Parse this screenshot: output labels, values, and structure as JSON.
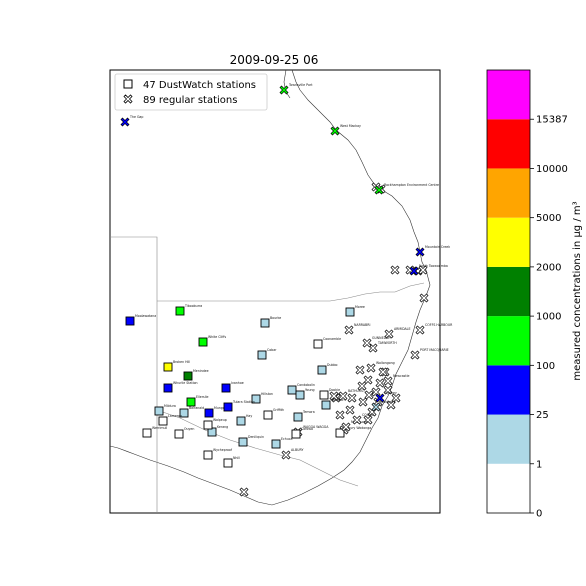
{
  "chart_data": {
    "type": "scatter",
    "title": "2009-09-25 06",
    "legend": {
      "placement": "top-left",
      "entries": [
        {
          "marker": "square",
          "label": "47 DustWatch stations"
        },
        {
          "marker": "x",
          "label": "89 regular stations"
        }
      ]
    },
    "colorbar": {
      "label": "measured concentrations in μg / m³",
      "bounds": [
        "0",
        "1",
        "25",
        "100",
        "1000",
        "2000",
        "5000",
        "10000",
        "15387"
      ],
      "colors": [
        "#ffffff",
        "#add8e6",
        "#0000ff",
        "#00ff00",
        "#008000",
        "#ffff00",
        "#ffa500",
        "#ff0000",
        "#ff00ff"
      ]
    },
    "stations": [
      {
        "name": "Townsville Port",
        "type": "x",
        "color": "#00ff00"
      },
      {
        "name": "The Gap",
        "type": "x",
        "color": "#0000ff"
      },
      {
        "name": "West Mackay",
        "type": "x",
        "color": "#00ff00"
      },
      {
        "name": "Rockhampton Environment Centre",
        "type": "x",
        "color": "#00ff00"
      },
      {
        "name": "Mountain Creek",
        "type": "x",
        "color": "#0000ff"
      },
      {
        "name": "North Toowoomba",
        "type": "x",
        "color": "#0000ff"
      },
      {
        "name": "Tibooburra",
        "type": "square",
        "color": "#00ff00"
      },
      {
        "name": "Moolawatana",
        "type": "square",
        "color": "#0000ff"
      },
      {
        "name": "Bourke",
        "type": "square",
        "color": "#add8e6"
      },
      {
        "name": "Moree",
        "type": "square",
        "color": "#add8e6"
      },
      {
        "name": "NARRABRI",
        "type": "x",
        "color": "#ffffff"
      },
      {
        "name": "ARMIDALE",
        "type": "x",
        "color": "#ffffff"
      },
      {
        "name": "COFFS HARBOUR",
        "type": "x",
        "color": "#ffffff"
      },
      {
        "name": "TAMWORTH",
        "type": "x",
        "color": "#ffffff"
      },
      {
        "name": "GUNNEDAH",
        "type": "x",
        "color": "#ffffff"
      },
      {
        "name": "PORT MACQUARIE",
        "type": "x",
        "color": "#ffffff"
      },
      {
        "name": "White Cliffs",
        "type": "square",
        "color": "#00ff00"
      },
      {
        "name": "Coonamble",
        "type": "square",
        "color": "#ffffff"
      },
      {
        "name": "Cobar",
        "type": "square",
        "color": "#add8e6"
      },
      {
        "name": "Dubbo",
        "type": "square",
        "color": "#add8e6"
      },
      {
        "name": "Broken Hill",
        "type": "square",
        "color": "#ffff00"
      },
      {
        "name": "Menindee",
        "type": "square",
        "color": "#008000"
      },
      {
        "name": "Whurlie Station",
        "type": "square",
        "color": "#0000ff"
      },
      {
        "name": "Ivanhoe",
        "type": "square",
        "color": "#0000ff"
      },
      {
        "name": "Hillston",
        "type": "square",
        "color": "#add8e6"
      },
      {
        "name": "Condobolin",
        "type": "square",
        "color": "#add8e6"
      },
      {
        "name": "BATHURST",
        "type": "x",
        "color": "#ffffff"
      },
      {
        "name": "Ellerslie",
        "type": "square",
        "color": "#00ff00"
      },
      {
        "name": "Mildura",
        "type": "square",
        "color": "#add8e6"
      },
      {
        "name": "Balranald",
        "type": "square",
        "color": "#add8e6"
      },
      {
        "name": "Mungo",
        "type": "square",
        "color": "#0000ff"
      },
      {
        "name": "Tulara Station",
        "type": "square",
        "color": "#0000ff"
      },
      {
        "name": "Hay",
        "type": "square",
        "color": "#add8e6"
      },
      {
        "name": "Griffith",
        "type": "square",
        "color": "#ffffff"
      },
      {
        "name": "Young",
        "type": "square",
        "color": "#add8e6"
      },
      {
        "name": "Temora",
        "type": "square",
        "color": "#add8e6"
      },
      {
        "name": "Goulburn",
        "type": "square",
        "color": "#add8e6"
      },
      {
        "name": "WAGGA WAGGA",
        "type": "x",
        "color": "#ffffff"
      },
      {
        "name": "Deniliquin",
        "type": "square",
        "color": "#add8e6"
      },
      {
        "name": "Kerang",
        "type": "square",
        "color": "#add8e6"
      },
      {
        "name": "Ouyen",
        "type": "square",
        "color": "#ffffff"
      },
      {
        "name": "Werrimull",
        "type": "square",
        "color": "#ffffff"
      },
      {
        "name": "Lameroo",
        "type": "square",
        "color": "#ffffff"
      },
      {
        "name": "Walpeup",
        "type": "square",
        "color": "#ffffff"
      },
      {
        "name": "Nhill",
        "type": "square",
        "color": "#ffffff"
      },
      {
        "name": "Wycheproof",
        "type": "square",
        "color": "#ffffff"
      },
      {
        "name": "Echuca",
        "type": "square",
        "color": "#add8e6"
      },
      {
        "name": "Corowa",
        "type": "square",
        "color": "#ffffff"
      },
      {
        "name": "ALBURY",
        "type": "x",
        "color": "#ffffff"
      },
      {
        "name": "Dookie",
        "type": "square",
        "color": "#ffffff"
      },
      {
        "name": "Albury Wodonga",
        "type": "square",
        "color": "#ffffff"
      },
      {
        "name": "Melbourne",
        "type": "x",
        "color": "#ffffff"
      },
      {
        "name": "COOMA",
        "type": "x",
        "color": "#ffffff"
      },
      {
        "name": "Canberra",
        "type": "x",
        "color": "#add8e6"
      },
      {
        "name": "Sydney",
        "type": "x",
        "color": "#0000ff"
      },
      {
        "name": "Wollongong",
        "type": "x",
        "color": "#ffffff"
      },
      {
        "name": "Newcastle",
        "type": "x",
        "color": "#ffffff"
      }
    ]
  }
}
